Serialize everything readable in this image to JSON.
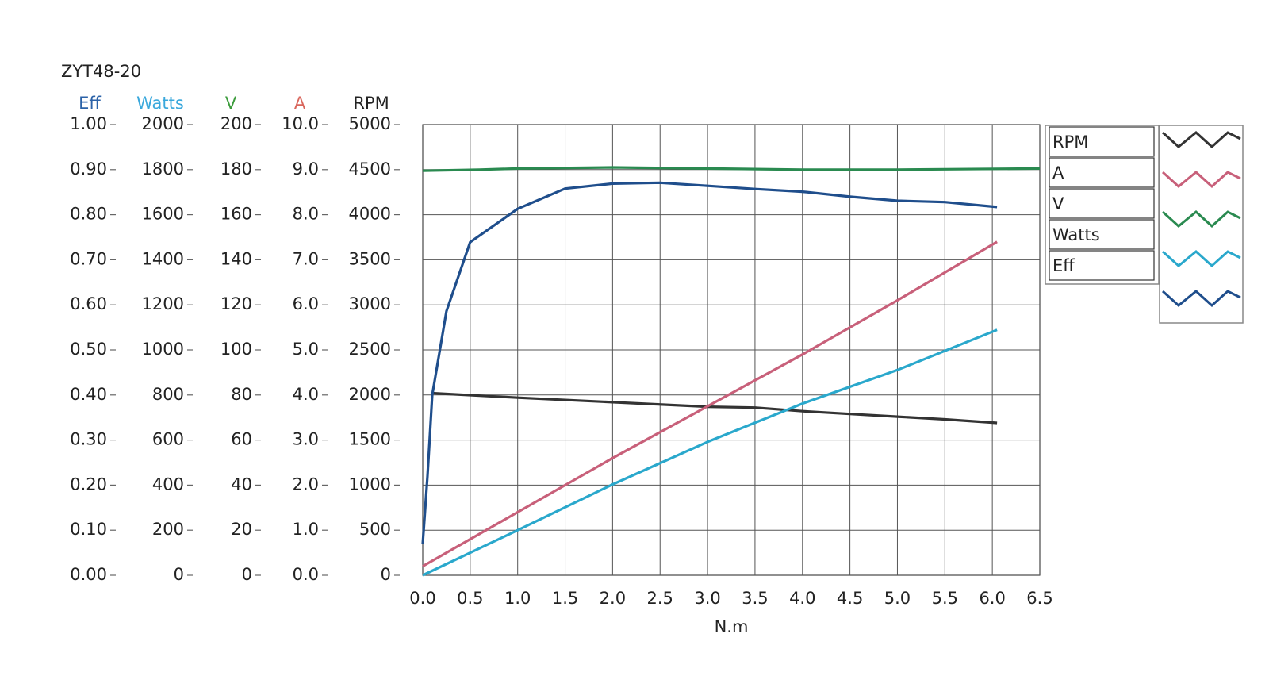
{
  "chart_data": {
    "type": "line",
    "title": "ZYT48-20",
    "x_label": "N.m",
    "xlim": [
      0,
      6.5
    ],
    "xticks": [
      {
        "value": 0,
        "label": "0.0"
      },
      0.5,
      {
        "value": 1,
        "label": "1.0"
      },
      1.5,
      {
        "value": 2,
        "label": "2.0"
      },
      2.5,
      {
        "value": 3,
        "label": "3.0"
      },
      3.5,
      {
        "value": 4,
        "label": "4.0"
      },
      4.5,
      {
        "value": 5,
        "label": "5.0"
      },
      5.5,
      {
        "value": 6,
        "label": "6.0"
      },
      6.5
    ],
    "grid": true,
    "y_axes": [
      {
        "label": "Eff",
        "color": "#2b62a8",
        "ylim": [
          0,
          1
        ],
        "yticks": [
          {
            "value": 0,
            "label": "0.00"
          },
          {
            "value": 0.1,
            "label": "0.10"
          },
          {
            "value": 0.2,
            "label": "0.20"
          },
          {
            "value": 0.3,
            "label": "0.30"
          },
          {
            "value": 0.4,
            "label": "0.40"
          },
          {
            "value": 0.5,
            "label": "0.50"
          },
          {
            "value": 0.6,
            "label": "0.60"
          },
          {
            "value": 0.7,
            "label": "0.70"
          },
          {
            "value": 0.8,
            "label": "0.80"
          },
          {
            "value": 0.9,
            "label": "0.90"
          },
          {
            "value": 1,
            "label": "1.00"
          }
        ]
      },
      {
        "label": "Watts",
        "color": "#3aa8dc",
        "ylim": [
          0,
          2000
        ],
        "yticks": [
          0,
          200,
          400,
          600,
          800,
          1000,
          1200,
          1400,
          1600,
          1800,
          2000
        ]
      },
      {
        "label": "V",
        "color": "#3c9c3c",
        "ylim": [
          0,
          200
        ],
        "yticks": [
          0,
          20,
          40,
          60,
          80,
          100,
          120,
          140,
          160,
          180,
          200
        ]
      },
      {
        "label": "A",
        "color": "#d9665c",
        "ylim": [
          0,
          10
        ],
        "yticks": [
          {
            "value": 0,
            "label": "0.0"
          },
          {
            "value": 1,
            "label": "1.0"
          },
          {
            "value": 2,
            "label": "2.0"
          },
          {
            "value": 3,
            "label": "3.0"
          },
          {
            "value": 4,
            "label": "4.0"
          },
          {
            "value": 5,
            "label": "5.0"
          },
          {
            "value": 6,
            "label": "6.0"
          },
          {
            "value": 7,
            "label": "7.0"
          },
          {
            "value": 8,
            "label": "8.0"
          },
          {
            "value": 9,
            "label": "9.0"
          },
          {
            "value": 10,
            "label": "10.0"
          }
        ]
      },
      {
        "label": "RPM",
        "color": "#222222",
        "ylim": [
          0,
          5000
        ],
        "yticks": [
          0,
          500,
          1000,
          1500,
          2000,
          2500,
          3000,
          3500,
          4000,
          4500,
          5000
        ]
      }
    ],
    "series": [
      {
        "name": "RPM",
        "color": "#333333",
        "axis": 4,
        "x": [
          0.1,
          1,
          2,
          3,
          3.5,
          4,
          4.5,
          5,
          5.5,
          6.05
        ],
        "values": [
          2020,
          1970,
          1920,
          1870,
          1860,
          1820,
          1790,
          1760,
          1730,
          1690
        ]
      },
      {
        "name": "A",
        "color": "#c8607a",
        "axis": 3,
        "x": [
          0,
          1,
          2,
          3,
          4,
          5,
          6.05
        ],
        "values": [
          0.2,
          1.4,
          2.6,
          3.75,
          4.9,
          6.1,
          7.4
        ]
      },
      {
        "name": "V",
        "color": "#2a8a50",
        "axis": 2,
        "x": [
          0,
          0.6,
          1,
          2,
          3,
          4,
          5,
          6.5
        ],
        "values": [
          179.5,
          180,
          180.5,
          181,
          180.5,
          180,
          180,
          180.5
        ]
      },
      {
        "name": "Watts",
        "color": "#2aa8cc",
        "axis": 1,
        "x": [
          0,
          1,
          2,
          3,
          4,
          5,
          6.05
        ],
        "values": [
          0,
          200,
          403,
          592,
          762,
          911,
          1089
        ]
      },
      {
        "name": "Eff",
        "color": "#1f4e8c",
        "axis": 0,
        "x": [
          0,
          0.05,
          0.1,
          0.25,
          0.5,
          1,
          1.5,
          2,
          2.5,
          3,
          3.5,
          4,
          4.5,
          5,
          5.5,
          6.05
        ],
        "values": [
          0.07,
          0.22,
          0.4,
          0.586,
          0.739,
          0.813,
          0.858,
          0.869,
          0.871,
          0.864,
          0.857,
          0.851,
          0.84,
          0.831,
          0.828,
          0.817
        ]
      }
    ]
  }
}
